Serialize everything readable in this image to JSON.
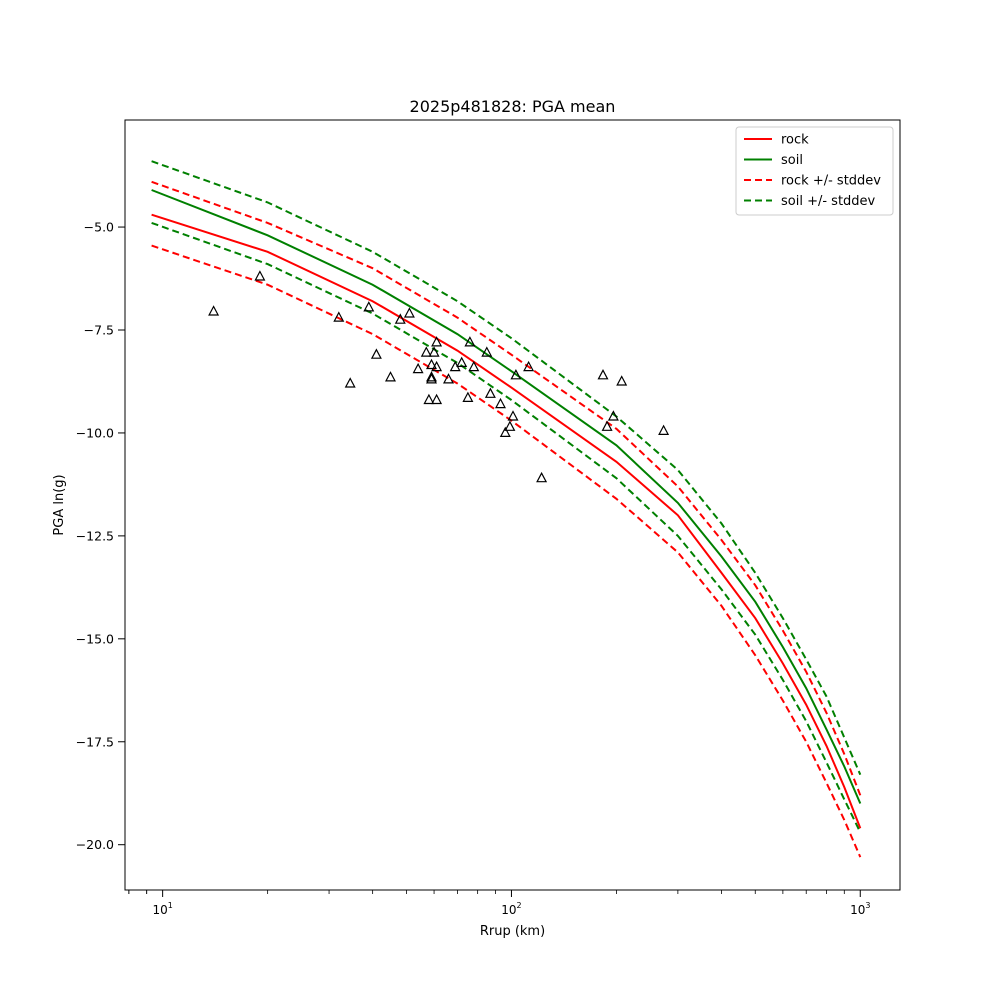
{
  "chart_data": {
    "type": "scatter",
    "title": "2025p481828: PGA mean",
    "xlabel": "Rrup (km)",
    "ylabel": "PGA ln(g)",
    "xscale": "log",
    "xlim": [
      7.8,
      1300
    ],
    "ylim": [
      -21.1,
      -2.4
    ],
    "grid": false,
    "legend_position": "top-right",
    "x_ticks": [
      {
        "value": 10,
        "label": "10",
        "exp": "1"
      },
      {
        "value": 100,
        "label": "10",
        "exp": "2"
      },
      {
        "value": 1000,
        "label": "10",
        "exp": "3"
      }
    ],
    "y_ticks": [
      {
        "value": -5.0,
        "label": "−5.0"
      },
      {
        "value": -7.5,
        "label": "−7.5"
      },
      {
        "value": -10.0,
        "label": "−10.0"
      },
      {
        "value": -12.5,
        "label": "−12.5"
      },
      {
        "value": -15.0,
        "label": "−15.0"
      },
      {
        "value": -17.5,
        "label": "−17.5"
      },
      {
        "value": -20.0,
        "label": "−20.0"
      }
    ],
    "series": [
      {
        "name": "rock",
        "color": "#ff0000",
        "dash": false,
        "x": [
          9.3,
          20,
          40,
          70,
          100,
          200,
          300,
          400,
          500,
          600,
          700,
          800,
          900,
          1000
        ],
        "y": [
          -4.7,
          -5.6,
          -6.8,
          -8.0,
          -8.9,
          -10.7,
          -12.0,
          -13.4,
          -14.5,
          -15.6,
          -16.6,
          -17.6,
          -18.6,
          -19.6
        ]
      },
      {
        "name": "soil",
        "color": "#008000",
        "dash": false,
        "x": [
          9.3,
          20,
          40,
          70,
          100,
          200,
          300,
          400,
          500,
          600,
          700,
          800,
          900,
          1000
        ],
        "y": [
          -4.1,
          -5.2,
          -6.4,
          -7.6,
          -8.5,
          -10.3,
          -11.7,
          -13.0,
          -14.1,
          -15.2,
          -16.2,
          -17.2,
          -18.1,
          -19.0
        ]
      },
      {
        "name": "rock +/- stddev",
        "color": "#ff0000",
        "dash": true,
        "x": [
          9.3,
          20,
          40,
          70,
          100,
          200,
          300,
          400,
          500,
          600,
          700,
          800,
          900,
          1000
        ],
        "y": [
          -3.9,
          -4.9,
          -6.0,
          -7.2,
          -8.1,
          -9.9,
          -11.3,
          -12.6,
          -13.7,
          -14.8,
          -15.8,
          -16.8,
          -17.8,
          -18.8
        ]
      },
      {
        "name": "",
        "color": "#ff0000",
        "dash": true,
        "x": [
          9.3,
          20,
          40,
          70,
          100,
          200,
          300,
          400,
          500,
          600,
          700,
          800,
          900,
          1000
        ],
        "y": [
          -5.45,
          -6.4,
          -7.6,
          -8.8,
          -9.7,
          -11.6,
          -12.9,
          -14.2,
          -15.4,
          -16.5,
          -17.5,
          -18.5,
          -19.4,
          -20.3
        ]
      },
      {
        "name": "soil +/- stddev",
        "color": "#008000",
        "dash": true,
        "x": [
          9.3,
          20,
          40,
          70,
          100,
          200,
          300,
          400,
          500,
          600,
          700,
          800,
          900,
          1000
        ],
        "y": [
          -3.4,
          -4.4,
          -5.6,
          -6.8,
          -7.7,
          -9.6,
          -10.9,
          -12.2,
          -13.4,
          -14.5,
          -15.5,
          -16.4,
          -17.4,
          -18.3
        ]
      },
      {
        "name": "",
        "color": "#008000",
        "dash": true,
        "x": [
          9.3,
          20,
          40,
          70,
          100,
          200,
          300,
          400,
          500,
          600,
          700,
          800,
          900,
          1000
        ],
        "y": [
          -4.9,
          -5.9,
          -7.1,
          -8.3,
          -9.2,
          -11.1,
          -12.5,
          -13.8,
          -14.9,
          -16.0,
          -17.0,
          -18.0,
          -18.9,
          -19.7
        ]
      }
    ],
    "observations": {
      "marker": "triangle",
      "x": [
        14,
        19,
        32,
        34.5,
        39,
        41,
        45,
        48,
        51,
        54,
        57,
        58,
        59,
        59,
        59,
        60,
        61,
        61,
        61,
        66,
        69,
        72,
        75,
        76,
        78,
        85,
        87,
        93,
        96,
        99,
        101,
        103,
        112,
        122,
        183,
        188,
        196,
        207,
        273
      ],
      "y": [
        -7.05,
        -6.2,
        -7.2,
        -8.8,
        -6.95,
        -8.1,
        -8.65,
        -7.25,
        -7.1,
        -8.45,
        -8.05,
        -9.2,
        -8.65,
        -8.7,
        -8.35,
        -8.05,
        -7.8,
        -8.4,
        -9.2,
        -8.7,
        -8.4,
        -8.3,
        -9.15,
        -7.8,
        -8.4,
        -8.05,
        -9.05,
        -9.3,
        -10.0,
        -9.85,
        -9.6,
        -8.6,
        -8.4,
        -11.1,
        -8.6,
        -9.85,
        -9.6,
        -8.75,
        -9.95
      ]
    }
  }
}
